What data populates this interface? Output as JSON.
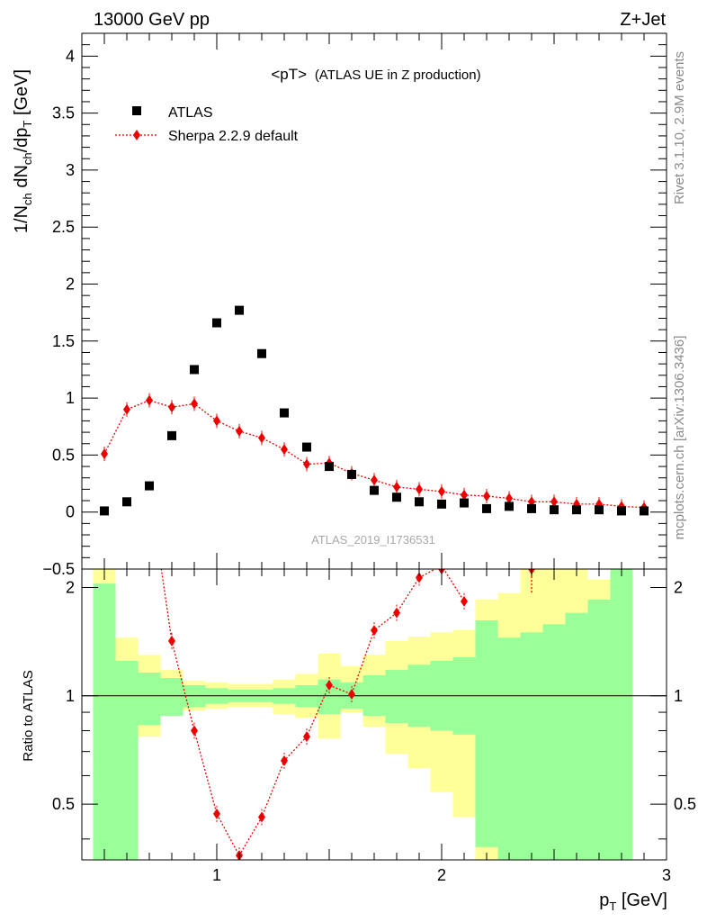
{
  "header": {
    "left": "13000 GeV pp",
    "right": "Z+Jet"
  },
  "side_labels": {
    "rivet": "Rivet 3.1.10,  2.9M events",
    "mcplots": "mcplots.cern.ch [arXiv:1306.3436]"
  },
  "watermark": "ATLAS_2019_I1736531",
  "colors": {
    "mc": "#ee0000",
    "band_stat": "#99ff99",
    "band_total": "#ffff99",
    "data": "#000000"
  },
  "chart_data": [
    {
      "type": "scatter",
      "panel": "main",
      "title_main": "<pT>",
      "title_suffix": "(ATLAS UE in Z production)",
      "ylabel": "1/N_ch dN_ch/dp_T [GeV]",
      "xlim": [
        0.4,
        3.0
      ],
      "ylim": [
        -0.5,
        4.2
      ],
      "yticks": [
        "−0.5",
        "0",
        "0.5",
        "1",
        "1.5",
        "2",
        "2.5",
        "3",
        "3.5",
        "4"
      ],
      "legend_position": "top-left",
      "series": [
        {
          "name": "ATLAS",
          "marker": "square",
          "x": [
            0.5,
            0.6,
            0.7,
            0.8,
            0.9,
            1.0,
            1.1,
            1.2,
            1.3,
            1.4,
            1.5,
            1.6,
            1.7,
            1.8,
            1.9,
            2.0,
            2.1,
            2.2,
            2.3,
            2.4,
            2.5,
            2.6,
            2.7,
            2.8,
            2.9
          ],
          "y": [
            0.01,
            0.09,
            0.23,
            0.67,
            1.25,
            1.66,
            1.77,
            1.39,
            0.87,
            0.57,
            0.4,
            0.33,
            0.19,
            0.13,
            0.09,
            0.07,
            0.08,
            0.03,
            0.05,
            0.03,
            0.02,
            0.02,
            0.02,
            0.01,
            0.01
          ]
        },
        {
          "name": "Sherpa 2.2.9 default",
          "marker": "diamond",
          "line": "dotted",
          "x": [
            0.5,
            0.6,
            0.7,
            0.8,
            0.9,
            1.0,
            1.1,
            1.2,
            1.3,
            1.4,
            1.5,
            1.6,
            1.7,
            1.8,
            1.9,
            2.0,
            2.1,
            2.2,
            2.3,
            2.4,
            2.5,
            2.6,
            2.7,
            2.8,
            2.9
          ],
          "y": [
            0.51,
            0.9,
            0.98,
            0.92,
            0.95,
            0.8,
            0.71,
            0.65,
            0.55,
            0.42,
            0.43,
            0.34,
            0.28,
            0.22,
            0.2,
            0.18,
            0.15,
            0.14,
            0.12,
            0.09,
            0.09,
            0.07,
            0.07,
            0.05,
            0.04
          ]
        }
      ]
    },
    {
      "type": "line",
      "panel": "ratio",
      "ylabel": "Ratio to ATLAS",
      "xlabel": "p_T [GeV]",
      "xlim": [
        0.4,
        3.0
      ],
      "ylim": [
        0.35,
        2.25
      ],
      "yticks": [
        "0.5",
        "1",
        "2"
      ],
      "xticks": [
        "1",
        "2",
        "3"
      ],
      "reference_line": 1,
      "bands": {
        "bin_edges": [
          0.45,
          0.55,
          0.65,
          0.75,
          0.85,
          0.95,
          1.05,
          1.15,
          1.25,
          1.35,
          1.45,
          1.55,
          1.65,
          1.75,
          1.85,
          1.95,
          2.05,
          2.15,
          2.25,
          2.35,
          2.45,
          2.55,
          2.65,
          2.75,
          2.85
        ],
        "stat_lo": [
          0.35,
          0.35,
          0.83,
          0.88,
          0.93,
          0.95,
          0.96,
          0.96,
          0.95,
          0.93,
          0.89,
          0.92,
          0.88,
          0.84,
          0.82,
          0.8,
          0.78,
          0.38,
          0.35,
          0.35,
          0.35,
          0.35,
          0.35,
          0.35
        ],
        "stat_hi": [
          2.05,
          1.25,
          1.16,
          1.12,
          1.07,
          1.05,
          1.04,
          1.04,
          1.05,
          1.07,
          1.11,
          1.09,
          1.14,
          1.18,
          1.22,
          1.25,
          1.28,
          1.62,
          1.45,
          1.5,
          1.58,
          1.7,
          1.85,
          2.25
        ],
        "total_lo": [
          0.35,
          0.59,
          0.77,
          0.88,
          0.91,
          0.92,
          0.93,
          0.93,
          0.89,
          0.87,
          0.76,
          0.9,
          0.82,
          0.69,
          0.63,
          0.54,
          0.46,
          0.35,
          0.35,
          0.61,
          0.51,
          0.35,
          0.35,
          0.35
        ],
        "total_hi": [
          2.25,
          1.45,
          1.3,
          1.18,
          1.1,
          1.09,
          1.08,
          1.08,
          1.11,
          1.15,
          1.31,
          1.21,
          1.3,
          1.42,
          1.46,
          1.5,
          1.52,
          1.85,
          1.93,
          2.25,
          2.25,
          2.25,
          2.1,
          2.25
        ]
      },
      "series": [
        {
          "name": "Sherpa 2.2.9 default",
          "x": [
            0.8,
            0.9,
            1.0,
            1.1,
            1.2,
            1.3,
            1.4,
            1.5,
            1.6,
            1.7,
            1.8,
            1.9,
            2.0,
            2.1,
            2.4
          ],
          "y": [
            1.42,
            0.8,
            0.47,
            0.36,
            0.46,
            0.66,
            0.77,
            1.07,
            1.01,
            1.52,
            1.7,
            2.13,
            2.3,
            1.83,
            2.3
          ]
        }
      ]
    }
  ]
}
